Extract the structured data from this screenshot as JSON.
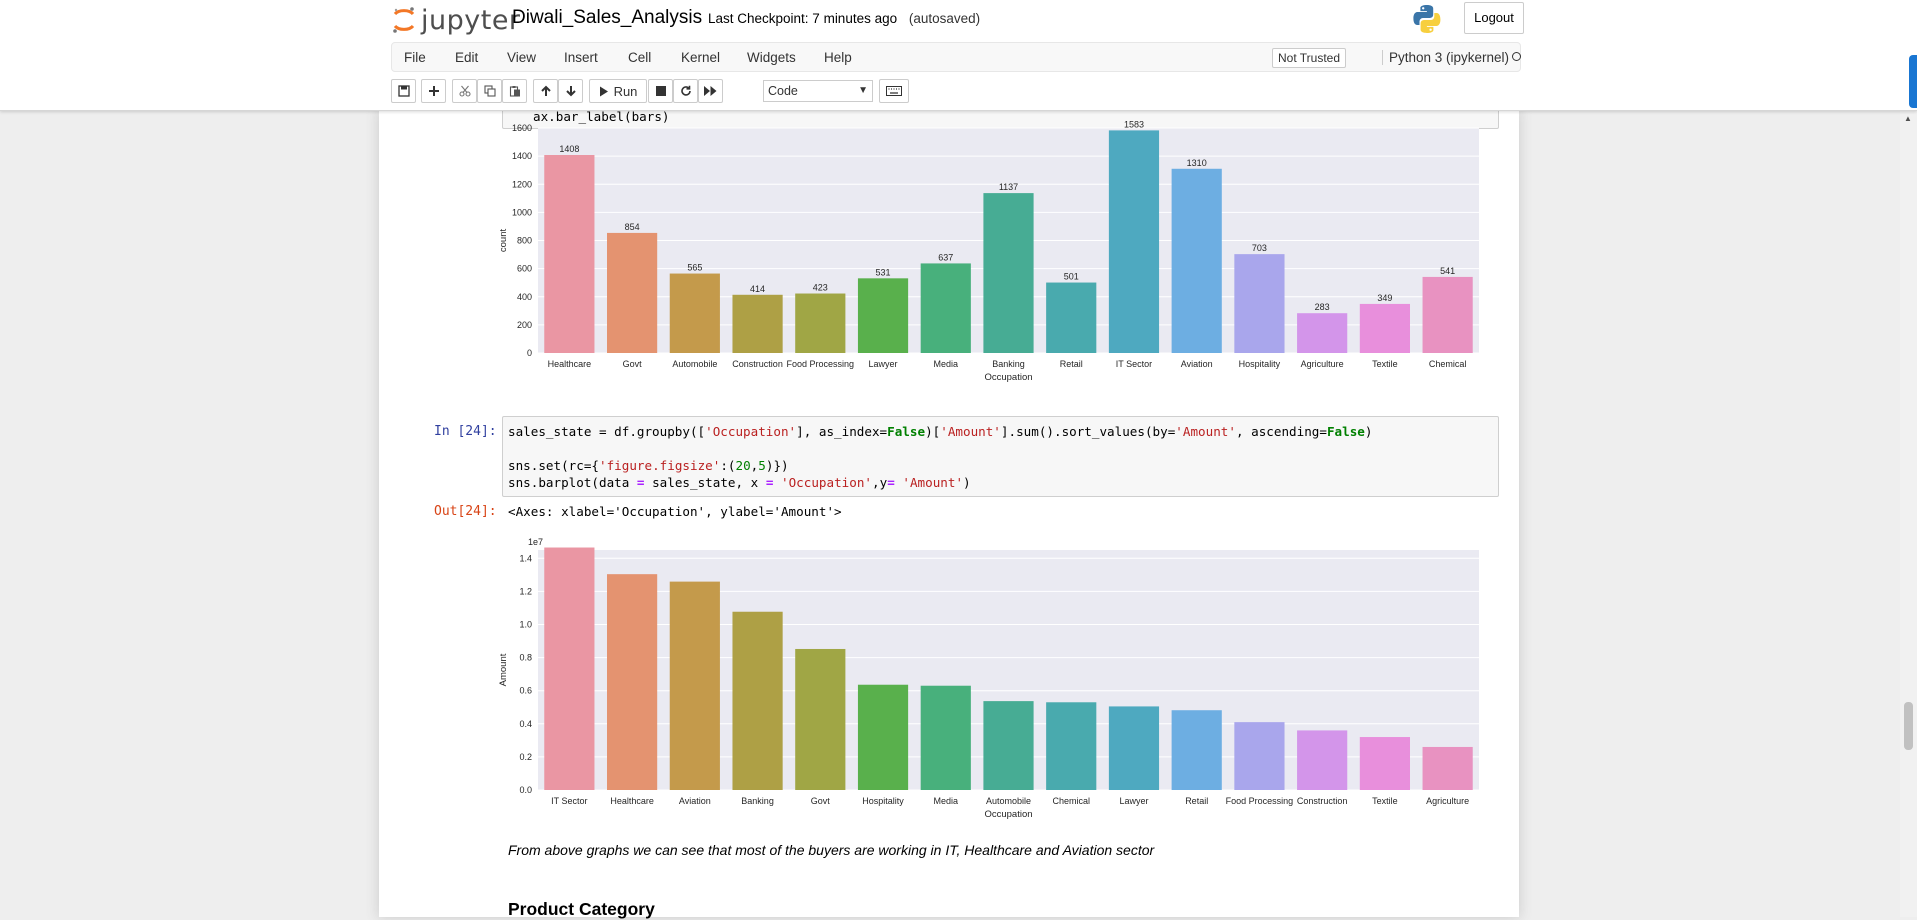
{
  "header": {
    "logo_text": "jupyter",
    "notebook_name": "Diwali_Sales_Analysis",
    "checkpoint": "Last Checkpoint: 7 minutes ago",
    "autosave": "(autosaved)",
    "logout_label": "Logout"
  },
  "menu": {
    "items": [
      "File",
      "Edit",
      "View",
      "Insert",
      "Cell",
      "Kernel",
      "Widgets",
      "Help"
    ],
    "trust_label": "Not Trusted",
    "kernel_name": "Python 3 (ipykernel)"
  },
  "toolbar": {
    "run_label": "Run",
    "cell_type": "Code",
    "icons": [
      "save-icon",
      "plus-icon",
      "cut-icon",
      "copy-icon",
      "paste-icon",
      "arrow-up-icon",
      "arrow-down-icon",
      "run-icon",
      "stop-icon",
      "restart-icon",
      "fast-forward-icon",
      "keyboard-icon"
    ]
  },
  "cells": {
    "partial_code": "ax.bar_label(bars)",
    "cell24": {
      "in_prompt": "In [24]:",
      "out_prompt": "Out[24]:",
      "line1": {
        "a": "sales_state = df.groupby([",
        "b": "'Occupation'",
        "c": "], as_index=",
        "d": "False",
        "e": ")[",
        "f": "'Amount'",
        "g": "].sum().sort_values(by=",
        "h": "'Amount'",
        "i": ", ascending=",
        "j": "False",
        "k": ")"
      },
      "line2": {
        "a": "sns.set(rc={",
        "b": "'figure.figsize'",
        "c": ":(",
        "d": "20",
        "e": ",",
        "f": "5",
        "g": ")})"
      },
      "line3": {
        "a": "sns.barplot(data ",
        "b": "=",
        "c": " sales_state, x ",
        "d": "=",
        "e": " ",
        "f": "'Occupation'",
        "g": ",y",
        "h": "=",
        "i": " ",
        "j": "'Amount'",
        "k": ")"
      },
      "output_text": "<Axes: xlabel='Occupation', ylabel='Amount'>"
    },
    "markdown_text": "From above graphs we can see that most of the buyers are working in IT, Healthcare and Aviation sector",
    "next_heading": "Product Category"
  },
  "chart_data": [
    {
      "type": "bar",
      "xlabel": "Occupation",
      "ylabel": "count",
      "ylim": [
        0,
        1600
      ],
      "yticks": [
        0,
        200,
        400,
        600,
        800,
        1000,
        1200,
        1400,
        1600
      ],
      "grid": true,
      "categories": [
        "Healthcare",
        "Govt",
        "Automobile",
        "Construction",
        "Food Processing",
        "Lawyer",
        "Media",
        "Banking",
        "Retail",
        "IT Sector",
        "Aviation",
        "Hospitality",
        "Agriculture",
        "Textile",
        "Chemical"
      ],
      "values": [
        1408,
        854,
        565,
        414,
        423,
        531,
        637,
        1137,
        501,
        1583,
        1310,
        703,
        283,
        349,
        541
      ],
      "colors": [
        "#ea96a3",
        "#e49370",
        "#c49a4b",
        "#aea045",
        "#a0a645",
        "#59b04c",
        "#48b07c",
        "#47ac94",
        "#49aaae",
        "#4ea9c0",
        "#6daee2",
        "#a9a6ec",
        "#d395ea",
        "#e88fdc",
        "#e892c1"
      ],
      "data_labels": true
    },
    {
      "type": "bar",
      "xlabel": "Occupation",
      "ylabel": "Amount",
      "y_multiplier": "1e7",
      "ylim": [
        0,
        1.45
      ],
      "yticks": [
        "0.0",
        "0.2",
        "0.4",
        "0.6",
        "0.8",
        "1.0",
        "1.2",
        "1.4"
      ],
      "grid": true,
      "categories": [
        "IT Sector",
        "Healthcare",
        "Aviation",
        "Banking",
        "Govt",
        "Hospitality",
        "Media",
        "Automobile",
        "Chemical",
        "Lawyer",
        "Retail",
        "Food Processing",
        "Construction",
        "Textile",
        "Agriculture"
      ],
      "values": [
        1.465,
        1.304,
        1.259,
        1.077,
        0.852,
        0.636,
        0.63,
        0.537,
        0.53,
        0.505,
        0.482,
        0.41,
        0.36,
        0.32,
        0.26
      ],
      "colors": [
        "#ea96a3",
        "#e49370",
        "#c49a4b",
        "#aea045",
        "#a0a645",
        "#59b04c",
        "#48b07c",
        "#47ac94",
        "#49aaae",
        "#4ea9c0",
        "#6daee2",
        "#a9a6ec",
        "#d395ea",
        "#e88fdc",
        "#e892c1"
      ],
      "data_labels": false
    }
  ],
  "colors": {
    "accent": "#f37726",
    "plot_background": "#eaeaf2",
    "input_prompt": "#303f9f",
    "output_prompt": "#d84315"
  }
}
